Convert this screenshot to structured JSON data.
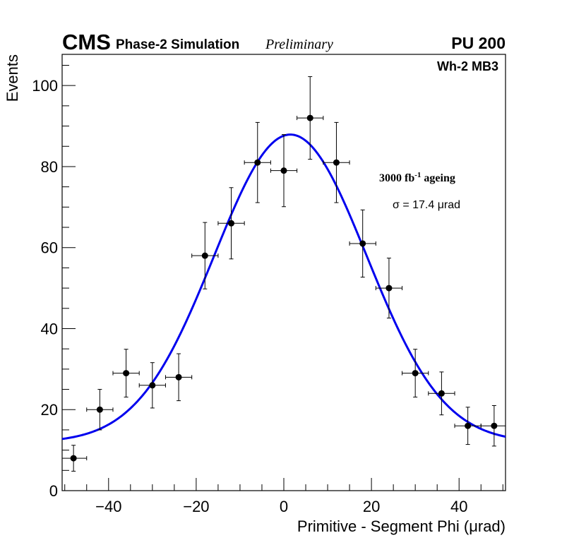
{
  "header": {
    "experiment": "CMS",
    "subtitle": "Phase-2 Simulation",
    "status": "Preliminary",
    "pileup": "PU 200"
  },
  "annotations": {
    "station": "Wh-2 MB3",
    "ageing_prefix": "3000 fb",
    "ageing_sup": "-1",
    "ageing_suffix": " ageing",
    "sigma": "σ = 17.4 μrad"
  },
  "chart_data": {
    "type": "scatter",
    "title": "",
    "xlabel": "Primitive - Segment Phi (μrad)",
    "ylabel": "Events",
    "xlim": [
      -50.6,
      50.6
    ],
    "ylim": [
      0,
      107.7
    ],
    "xticks": [
      -40,
      -20,
      0,
      20,
      40
    ],
    "xtick_labels": [
      "−40",
      "−20",
      "0",
      "20",
      "40"
    ],
    "xminor_step": 5,
    "yticks": [
      0,
      20,
      40,
      60,
      80,
      100
    ],
    "ytick_labels": [
      "0",
      "20",
      "40",
      "60",
      "80",
      "100"
    ],
    "yminor_step": 5,
    "grid": false,
    "bin_width": 6,
    "series": [
      {
        "name": "data",
        "color": "#000000",
        "x": [
          -48,
          -42,
          -36,
          -30,
          -24,
          -18,
          -12,
          -6,
          0,
          6,
          12,
          18,
          24,
          30,
          36,
          42,
          48
        ],
        "y": [
          8,
          20,
          29,
          26,
          28,
          58,
          66,
          81,
          79,
          92,
          81,
          61,
          50,
          29,
          24,
          16,
          16
        ],
        "yerr": [
          3.2,
          5.0,
          5.9,
          5.6,
          5.8,
          8.2,
          8.8,
          9.9,
          8.9,
          10.2,
          9.9,
          8.3,
          7.4,
          5.9,
          5.3,
          4.6,
          5.0
        ]
      }
    ],
    "fit": {
      "name": "gaussian fit",
      "color": "#0000ee",
      "function": "constant + amplitude*exp(-0.5*((x-mean)/sigma)^2)",
      "mean": 1.5,
      "sigma": 17.4,
      "amplitude": 76.0,
      "constant": 11.9
    }
  }
}
